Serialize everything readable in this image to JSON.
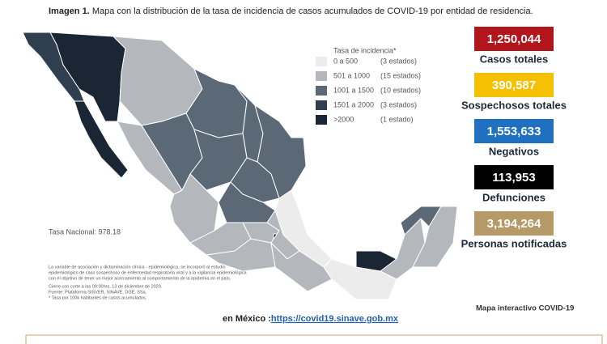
{
  "caption": {
    "label": "Imagen 1.",
    "text": "Mapa con la distribución de la tasa de incidencia de casos acumulados de COVID-19 por entidad de residencia."
  },
  "legend": {
    "title": "Tasa de incidencia*",
    "items": [
      {
        "range": "0 a   500",
        "count": "(3 estados)",
        "color": "#ececec"
      },
      {
        "range": "501 a  1000",
        "count": "(15 estados)",
        "color": "#b4b7bc"
      },
      {
        "range": "1001 a  1500",
        "count": "(10 estados)",
        "color": "#5b6977"
      },
      {
        "range": "1501 a  2000",
        "count": "(3 estados)",
        "color": "#2f3f50"
      },
      {
        "range": ">2000",
        "count": "(1 estado)",
        "color": "#1a2634"
      }
    ]
  },
  "tasa_nacional": "Tasa Nacional: 978.18",
  "stats": [
    {
      "value": "1,250,044",
      "label": "Casos totales",
      "color": "#b2161c"
    },
    {
      "value": "390,587",
      "label": "Sospechosos totales",
      "color": "#f5c000"
    },
    {
      "value": "1,553,633",
      "label": "Negativos",
      "color": "#1f70c1"
    },
    {
      "value": "113,953",
      "label": "Defunciones",
      "color": "#000000"
    },
    {
      "value": "3,194,264",
      "label": "Personas notificadas",
      "color": "#b59a68"
    }
  ],
  "notes": [
    "La variable de asociación y dictaminación clínica - epidemiológica, se incorporó al estudio",
    "epidemiológico de caso sospechoso de enfermedad respiratoria viral y a la vigilancia epidemiológica",
    "con el objetivo de tener un mejor acercamiento al comportamiento de la epidemia en el país.",
    "Cierre con corte a las 09:00hrs, 13 de diciembre de 2020.",
    "Fuente: Plataforma SISVER, SINAVE, DGE, SSa.",
    "* Tasa por 100k habitantes de casos acumulados."
  ],
  "link": {
    "prefix": "en México :",
    "url": "https://covid19.sinave.gob.mx"
  },
  "interactive": "Mapa interactivo COVID-19"
}
